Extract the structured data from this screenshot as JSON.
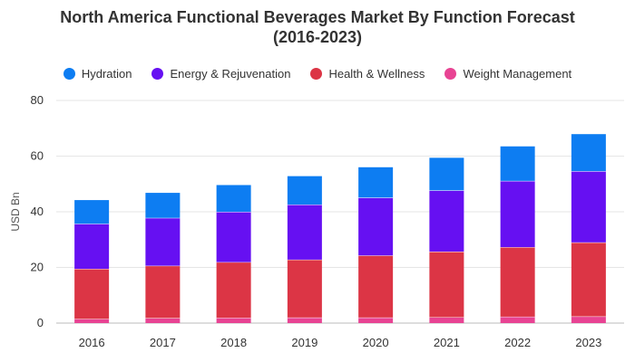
{
  "chart_data": {
    "type": "bar",
    "stacked": true,
    "title_line1": "North America Functional Beverages Market By Function Forecast",
    "title_line2": "(2016-2023)",
    "ylabel": "USD Bn",
    "xlabel": "",
    "ylim": [
      0,
      80
    ],
    "yticks": [
      0,
      20,
      40,
      60,
      80
    ],
    "grid": true,
    "legend_position": "top",
    "categories": [
      "2016",
      "2017",
      "2018",
      "2019",
      "2020",
      "2021",
      "2022",
      "2023"
    ],
    "series": [
      {
        "name": "Weight Management",
        "color": "#e84393",
        "values": [
          1.5,
          1.8,
          1.9,
          2.0,
          2.0,
          2.1,
          2.3,
          2.4
        ]
      },
      {
        "name": "Health & Wellness",
        "color": "#dc3545",
        "values": [
          18.0,
          18.8,
          20.0,
          20.8,
          22.3,
          23.6,
          25.0,
          26.6
        ]
      },
      {
        "name": "Energy & Rejuvenation",
        "color": "#6610f2",
        "values": [
          16.2,
          17.2,
          18.1,
          19.8,
          20.8,
          22.0,
          23.8,
          25.6
        ]
      },
      {
        "name": "Hydration",
        "color": "#0d7df2",
        "values": [
          8.5,
          9.0,
          9.6,
          10.2,
          10.9,
          11.7,
          12.4,
          13.3
        ]
      }
    ]
  },
  "legend": [
    {
      "label": "Hydration",
      "color": "#0d7df2"
    },
    {
      "label": "Energy & Rejuvenation",
      "color": "#6610f2"
    },
    {
      "label": "Health & Wellness",
      "color": "#dc3545"
    },
    {
      "label": "Weight Management",
      "color": "#e84393"
    }
  ]
}
